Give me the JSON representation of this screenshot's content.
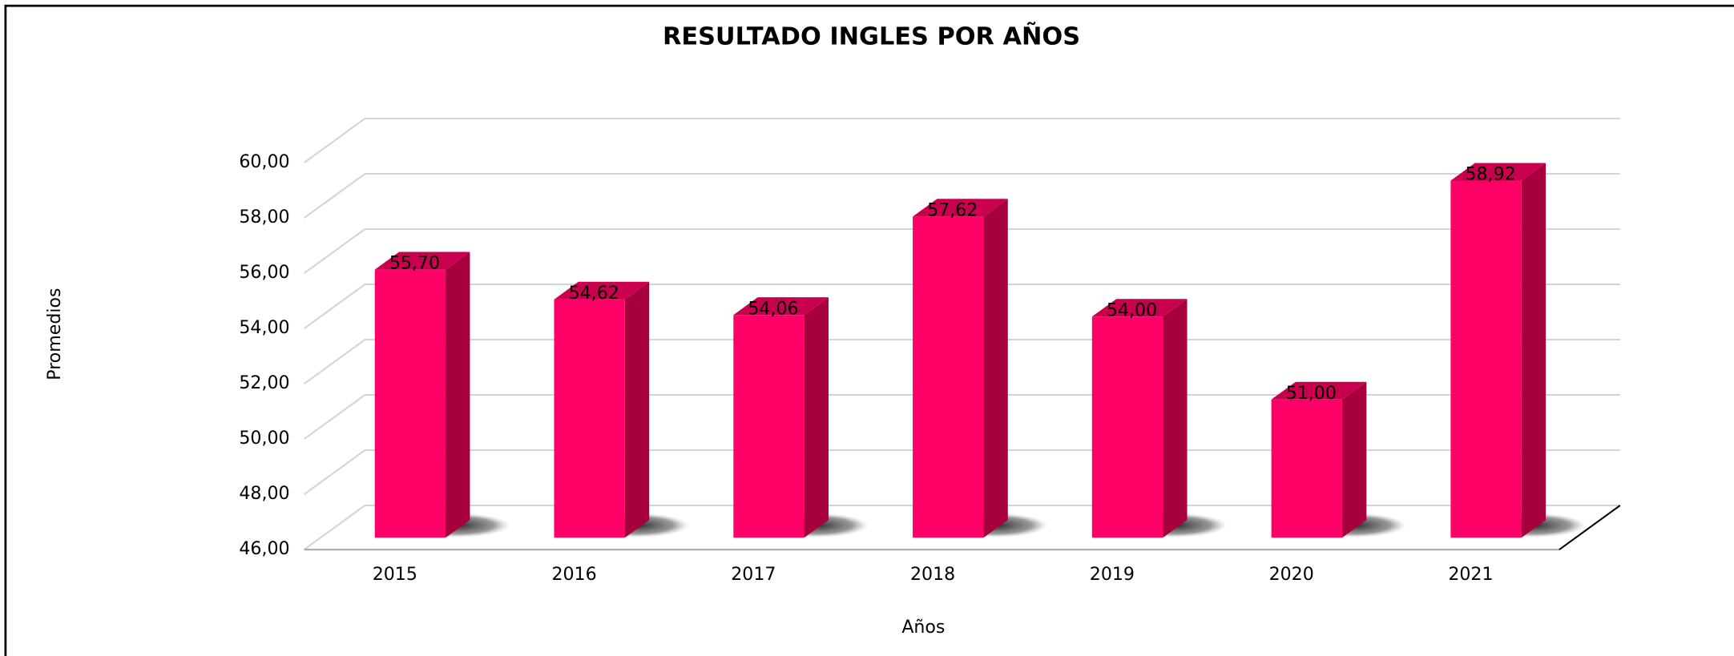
{
  "chart_data": {
    "type": "bar3d",
    "title": "RESULTADO INGLES POR AÑOS",
    "x_label": "Años",
    "y_label": "Promedios",
    "categories": [
      "2015",
      "2016",
      "2017",
      "2018",
      "2019",
      "2020",
      "2021"
    ],
    "values": [
      55.7,
      54.62,
      54.06,
      57.62,
      54.0,
      51.0,
      58.92
    ],
    "value_labels": [
      "55,70",
      "54,62",
      "54,06",
      "57,62",
      "54,00",
      "51,00",
      "58,92"
    ],
    "color": "#ff0066",
    "side_color": "#a8003f",
    "ylim": [
      46,
      60
    ],
    "yticks": [
      {
        "value": 46,
        "label": "46,00"
      },
      {
        "value": 48,
        "label": "48,00"
      },
      {
        "value": 50,
        "label": "50,00"
      },
      {
        "value": 52,
        "label": "52,00"
      },
      {
        "value": 54,
        "label": "54,00"
      },
      {
        "value": 56,
        "label": "56,00"
      },
      {
        "value": 58,
        "label": "58,00"
      },
      {
        "value": 60,
        "label": "60,00"
      }
    ],
    "grid": true
  }
}
